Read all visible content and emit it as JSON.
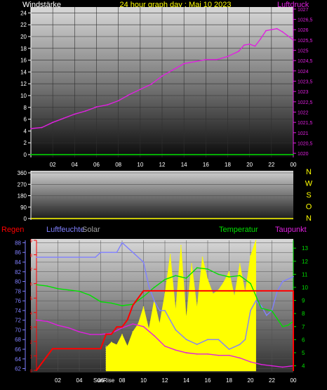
{
  "header": {
    "left_label": "Windstärke",
    "title": "24 hour graph day : Maj 10 2023",
    "right_label": "Luftdruck"
  },
  "bottom_header": {
    "regen": "Regen",
    "luftfeuchte": "Luftfeuchte",
    "solar": "Solar",
    "temperatur": "Temperatur",
    "taupunkt": "Taupunkt"
  },
  "colors": {
    "yellow": "#ffff00",
    "magenta": "#e020e0",
    "green": "#00e000",
    "red": "#ff0000",
    "blue": "#8080ff",
    "white": "#ffffff",
    "gray": "#a0a0a0"
  },
  "chart_data": [
    {
      "type": "line",
      "title": "24 hour graph day : Maj 10 2023",
      "y_left_label": "Windstärke",
      "y_right_label": "Luftdruck",
      "x_ticks": [
        "02",
        "04",
        "06",
        "08",
        "10",
        "12",
        "14",
        "16",
        "18",
        "20",
        "22",
        "00"
      ],
      "y_left_ticks": [
        "0",
        "2",
        "4",
        "6",
        "8",
        "10",
        "12",
        "14",
        "16",
        "18",
        "20",
        "22",
        "24"
      ],
      "y_left_lim": [
        0,
        25
      ],
      "y_right_ticks": [
        "1020",
        "1020,5",
        "1021",
        "1021,5",
        "1022",
        "1022,5",
        "1023",
        "1023,5",
        "1024",
        "1024,5",
        "1025",
        "1025,5",
        "1026",
        "1026,5",
        "1027"
      ],
      "y_right_lim": [
        1019.8,
        1027.1
      ],
      "series": [
        {
          "name": "Luftdruck",
          "axis": "right",
          "x": [
            0,
            1,
            2,
            3,
            4,
            5,
            6,
            7,
            8,
            9,
            10,
            11,
            12,
            13,
            14,
            15,
            16,
            17,
            18,
            19,
            19.5,
            20,
            20.5,
            21,
            21.5,
            22,
            22.5,
            23,
            23.5,
            24
          ],
          "y": [
            1021.2,
            1021.25,
            1021.5,
            1021.7,
            1021.9,
            1022.05,
            1022.25,
            1022.35,
            1022.55,
            1022.85,
            1023.1,
            1023.35,
            1023.75,
            1024.05,
            1024.35,
            1024.45,
            1024.55,
            1024.55,
            1024.7,
            1024.95,
            1025.25,
            1025.3,
            1025.2,
            1025.55,
            1025.95,
            1026.0,
            1026.05,
            1025.9,
            1025.7,
            1025.5
          ]
        },
        {
          "name": "Windstärke",
          "axis": "left",
          "x": [
            0,
            24
          ],
          "y": [
            0,
            0
          ]
        }
      ]
    },
    {
      "type": "line",
      "y_ticks": [
        "0",
        "90",
        "180",
        "270",
        "360"
      ],
      "y_lim": [
        0,
        360
      ],
      "y_right_labels": [
        "N",
        "W",
        "S",
        "O",
        "N"
      ],
      "series": [
        {
          "name": "Windrichtung",
          "x": [
            0,
            24
          ],
          "y": [
            0,
            0
          ]
        }
      ]
    },
    {
      "type": "line",
      "y_left_outer_ticks": [
        "0",
        "1",
        "2",
        "3",
        "4",
        "5",
        "6",
        "7",
        "8",
        "9"
      ],
      "y_left_ticks": [
        "62",
        "64",
        "66",
        "68",
        "70",
        "72",
        "74",
        "76",
        "78",
        "80",
        "82",
        "84",
        "86",
        "88"
      ],
      "y_left_lim": [
        61.5,
        88.5
      ],
      "y_right_ticks": [
        "4",
        "5",
        "6",
        "7",
        "8",
        "9",
        "10",
        "11",
        "12",
        "13"
      ],
      "y_right_lim": [
        3.6,
        13.6
      ],
      "x_ticks": [
        "02",
        "04",
        "06",
        "08",
        "10",
        "12",
        "14",
        "16",
        "18",
        "20",
        "22",
        "00"
      ],
      "x_annotations": [
        "SunRise"
      ],
      "series": [
        {
          "name": "Luftfeuchte",
          "axis": "left",
          "x": [
            0,
            2,
            4,
            5.5,
            6,
            7,
            7.5,
            8,
            9,
            10,
            10.5,
            11,
            11.5,
            12,
            12.5,
            13,
            14,
            15,
            16,
            17,
            18,
            19,
            19.5,
            20,
            20.5,
            21,
            21.5,
            22,
            22.5,
            23,
            24
          ],
          "y": [
            85,
            85,
            85,
            85,
            86,
            86,
            86,
            88,
            86,
            84,
            79,
            76,
            74,
            74,
            72,
            70,
            68,
            67,
            68,
            68,
            66,
            67,
            68,
            74,
            76,
            75,
            73,
            74,
            78,
            80,
            81
          ]
        },
        {
          "name": "Temperatur",
          "axis": "right",
          "x": [
            0,
            1,
            2,
            3,
            4,
            5,
            6,
            7,
            8,
            9,
            10,
            11,
            12,
            13,
            14,
            15,
            16,
            17,
            18,
            19,
            20,
            21,
            22,
            22.5,
            23,
            23.5,
            24
          ],
          "y": [
            10.2,
            10.1,
            9.9,
            9.8,
            9.7,
            9.4,
            8.9,
            8.8,
            8.6,
            8.7,
            9.3,
            10.0,
            10.6,
            10.9,
            10.7,
            11.5,
            11.4,
            11.0,
            10.8,
            10.9,
            10.3,
            8.4,
            8.2,
            7.6,
            7.0,
            7.1,
            7.4
          ]
        },
        {
          "name": "Taupunkt",
          "axis": "right",
          "x": [
            0,
            1,
            2,
            3,
            4,
            5,
            6,
            7,
            8,
            9,
            10,
            11,
            12,
            13,
            14,
            15,
            16,
            17,
            18,
            19,
            20,
            21,
            22,
            23,
            24
          ],
          "y": [
            7.5,
            7.4,
            7.1,
            6.9,
            6.6,
            6.4,
            6.4,
            6.5,
            6.9,
            7.2,
            7.0,
            6.3,
            5.5,
            5.2,
            5.0,
            4.9,
            4.9,
            4.8,
            4.8,
            4.6,
            4.3,
            4.1,
            4.0,
            3.9,
            4.0
          ]
        },
        {
          "name": "Regen",
          "axis": "outer",
          "x": [
            0,
            0.5,
            1,
            1.5,
            6,
            6.5,
            7,
            7.5,
            8,
            8.5,
            9,
            9.5,
            10,
            18,
            19,
            20,
            21,
            24
          ],
          "y": [
            0,
            0.5,
            1,
            1.5,
            1.5,
            2.5,
            2.5,
            3,
            3,
            3.5,
            4.5,
            5,
            5.5,
            5.5,
            5.5,
            5.5,
            5.5,
            5.5
          ]
        },
        {
          "name": "Solar",
          "axis": "right",
          "x": [
            6.5,
            7,
            7.5,
            8,
            8.5,
            9,
            9.5,
            10,
            10.5,
            11,
            11.5,
            12,
            12.5,
            13,
            13.5,
            14,
            14.5,
            15,
            15.5,
            16,
            16.5,
            17,
            17.5,
            18,
            18.5,
            19,
            19.5,
            20,
            20.5
          ],
          "y": [
            5.4,
            5.8,
            5.6,
            6.4,
            5.5,
            6.6,
            7.2,
            8.5,
            6.8,
            9.0,
            7.2,
            9.5,
            12.5,
            8.2,
            13.2,
            7.6,
            11.8,
            8.4,
            12.3,
            10.6,
            9.5,
            9.8,
            10.4,
            11.2,
            9.3,
            11.8,
            9.6,
            12.4,
            13.6
          ]
        }
      ]
    }
  ]
}
